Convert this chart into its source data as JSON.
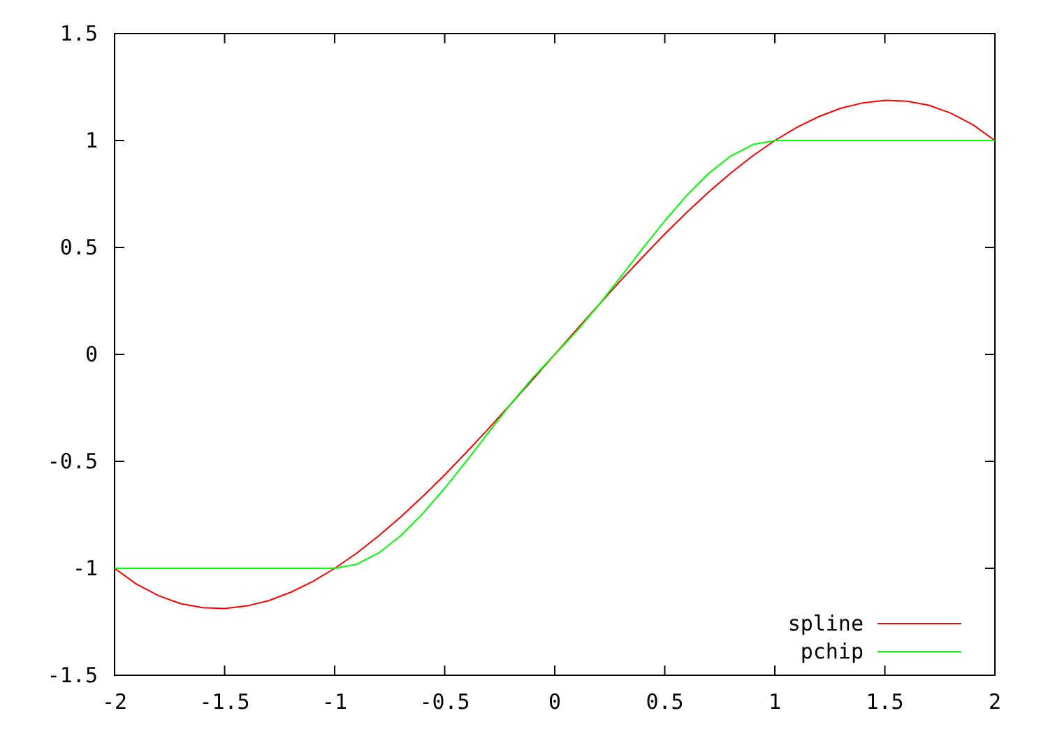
{
  "chart_data": {
    "type": "line",
    "xlim": [
      -2,
      2
    ],
    "ylim": [
      -1.5,
      1.5
    ],
    "xticks": [
      -2,
      -1.5,
      -1,
      -0.5,
      0,
      0.5,
      1,
      1.5,
      2
    ],
    "yticks": [
      -1.5,
      -1,
      -0.5,
      0,
      0.5,
      1,
      1.5
    ],
    "grid": false,
    "legend": "bottom right",
    "marker": "none",
    "line_style": "solid",
    "series": [
      {
        "name": "spline",
        "color": "#ff0000",
        "x": [
          -2,
          -1.9,
          -1.8,
          -1.7,
          -1.6,
          -1.5,
          -1.4,
          -1.3,
          -1.2,
          -1.1,
          -1,
          -0.9,
          -0.8,
          -0.7,
          -0.6,
          -0.5,
          -0.4,
          -0.3,
          -0.2,
          -0.1,
          0,
          0.1,
          0.2,
          0.3,
          0.4,
          0.5,
          0.6,
          0.7,
          0.8,
          0.9,
          1,
          1.1,
          1.2,
          1.3,
          1.4,
          1.5,
          1.6,
          1.7,
          1.8,
          1.9,
          2
        ],
        "values": [
          -1,
          -1.074,
          -1.128,
          -1.165,
          -1.184,
          -1.188,
          -1.176,
          -1.151,
          -1.112,
          -1.062,
          -1,
          -0.929,
          -0.848,
          -0.76,
          -0.664,
          -0.563,
          -0.456,
          -0.346,
          -0.232,
          -0.117,
          0,
          0.117,
          0.232,
          0.346,
          0.456,
          0.563,
          0.664,
          0.76,
          0.848,
          0.929,
          1,
          1.062,
          1.112,
          1.151,
          1.176,
          1.188,
          1.184,
          1.165,
          1.128,
          1.074,
          1
        ]
      },
      {
        "name": "pchip",
        "color": "#00ff00",
        "x": [
          -2,
          -1,
          -0.9,
          -0.8,
          -0.7,
          -0.6,
          -0.5,
          -0.4,
          -0.3,
          -0.2,
          -0.1,
          0,
          0.1,
          0.2,
          0.3,
          0.4,
          0.5,
          0.6,
          0.7,
          0.8,
          0.9,
          1,
          2
        ],
        "values": [
          -1,
          -1,
          -0.981,
          -0.928,
          -0.847,
          -0.744,
          -0.625,
          -0.496,
          -0.363,
          -0.232,
          -0.109,
          0,
          0.109,
          0.232,
          0.363,
          0.496,
          0.625,
          0.744,
          0.847,
          0.928,
          0.981,
          1,
          1
        ]
      }
    ]
  }
}
